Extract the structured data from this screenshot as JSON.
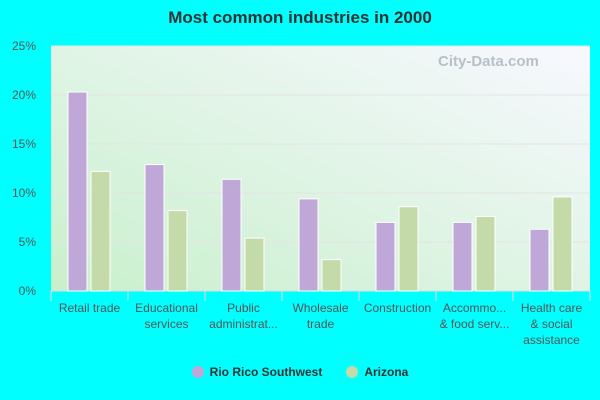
{
  "chart_data": {
    "type": "bar",
    "title": "Most common industries in 2000",
    "categories": [
      [
        "Retail trade"
      ],
      [
        "Educational",
        "services"
      ],
      [
        "Public",
        "administrat..."
      ],
      [
        "Wholesale",
        "trade"
      ],
      [
        "Construction"
      ],
      [
        "Accommo...",
        "& food serv..."
      ],
      [
        "Health care",
        "& social",
        "assistance"
      ]
    ],
    "series": [
      {
        "name": "Rio Rico Southwest",
        "color": "#bfa8d8",
        "values": [
          20.3,
          12.9,
          11.4,
          9.4,
          7.0,
          7.0,
          6.3
        ]
      },
      {
        "name": "Arizona",
        "color": "#c4daa8",
        "values": [
          12.2,
          8.2,
          5.4,
          3.2,
          8.6,
          7.6,
          9.6
        ]
      }
    ],
    "ylim": [
      0,
      25
    ],
    "yticks": [
      "0%",
      "5%",
      "10%",
      "15%",
      "20%",
      "25%"
    ],
    "grid": true,
    "legend": "bottom",
    "watermark": "City-Data.com"
  }
}
